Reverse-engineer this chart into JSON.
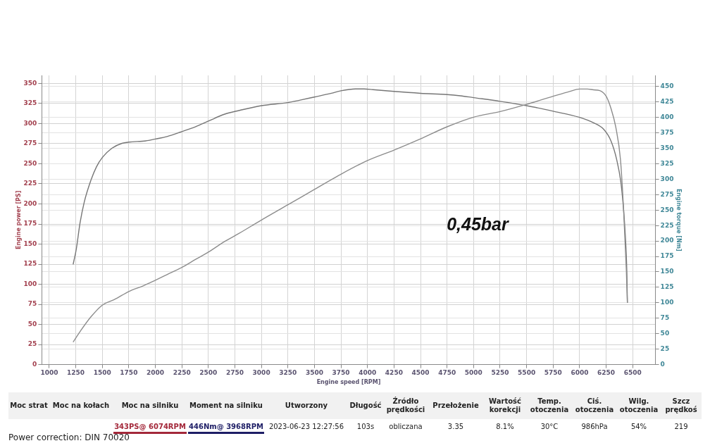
{
  "chart_data": {
    "type": "line",
    "xlabel": "Engine speed [RPM]",
    "ylabel": "Engine power [PS]",
    "y2label": "Engine torque [Nm]",
    "xlim": [
      930,
      6715
    ],
    "xticks": [
      1000,
      1250,
      1500,
      1750,
      2000,
      2250,
      2500,
      2750,
      3000,
      3250,
      3500,
      3750,
      4000,
      4250,
      4500,
      4750,
      5000,
      5250,
      5500,
      5750,
      6000,
      6250,
      6500
    ],
    "ylim": [
      0,
      360
    ],
    "yticks": [
      0,
      25,
      50,
      75,
      100,
      125,
      150,
      175,
      200,
      225,
      250,
      275,
      300,
      325,
      350
    ],
    "y2lim": [
      0,
      468
    ],
    "y2ticks": [
      0,
      25,
      50,
      75,
      100,
      125,
      150,
      175,
      200,
      225,
      250,
      275,
      300,
      325,
      350,
      375,
      400,
      425,
      450
    ],
    "grid": true,
    "series": [
      {
        "color": "#8c8c8c",
        "x": [
          1225,
          1290,
          1390,
          1500,
          1615,
          1750,
          1885,
          2000,
          2110,
          2250,
          2380,
          2500,
          2650,
          2785,
          3000,
          3250,
          3500,
          3750,
          4000,
          4250,
          4500,
          4750,
          5000,
          5250,
          5500,
          5750,
          5905,
          6000,
          6074,
          6130,
          6190,
          6250,
          6295,
          6340,
          6385,
          6415,
          6440,
          6450
        ],
        "values": [
          28,
          41,
          59,
          74,
          81,
          91,
          98,
          105,
          112,
          121,
          131,
          140,
          153,
          163,
          180,
          199,
          218,
          237,
          254,
          267,
          281,
          296,
          308,
          315,
          324,
          334,
          340,
          343,
          343,
          342,
          341,
          334,
          319,
          296,
          255,
          191,
          118,
          77
        ]
      },
      {
        "axis": "y2",
        "color": "#767676",
        "x": [
          1225,
          1255,
          1290,
          1330,
          1390,
          1445,
          1500,
          1590,
          1685,
          1750,
          1910,
          2000,
          2110,
          2250,
          2380,
          2500,
          2650,
          2785,
          3000,
          3250,
          3365,
          3500,
          3660,
          3750,
          3885,
          3968,
          4050,
          4250,
          4500,
          4750,
          4875,
          5000,
          5250,
          5500,
          5750,
          6000,
          6135,
          6225,
          6295,
          6350,
          6395,
          6430,
          6445,
          6450
        ],
        "values": [
          162,
          187,
          229,
          263,
          297,
          320,
          335,
          350,
          358,
          360,
          362,
          365,
          369,
          377,
          385,
          394,
          405,
          411,
          419,
          424,
          428,
          433,
          439,
          443,
          446,
          446,
          445,
          442,
          439,
          437,
          435,
          432,
          426,
          419,
          410,
          400,
          391,
          381,
          362,
          331,
          286,
          210,
          149,
          100
        ]
      }
    ],
    "annotations": [
      "0,45bar",
      "Moc strat",
      "Moc na kołach",
      "Moc na silniku",
      "Moment na silniku",
      "Utworzony",
      "Długość",
      "Źródło prędkości",
      "Przełożenie",
      "Wartość korekcji",
      "Temp. otoczenia",
      "Ciś. otoczenia",
      "Wilg. otoczenia",
      "Szcz prędkoś",
      "343PS@ 6074RPM",
      "446Nm@ 3968RPM",
      "2023-06-23 12:27:56",
      "103s",
      "obliczana",
      "3.35",
      "8.1%",
      "30°C",
      "986hPa",
      "54%",
      "219",
      "Power correction: DIN 70020"
    ]
  }
}
